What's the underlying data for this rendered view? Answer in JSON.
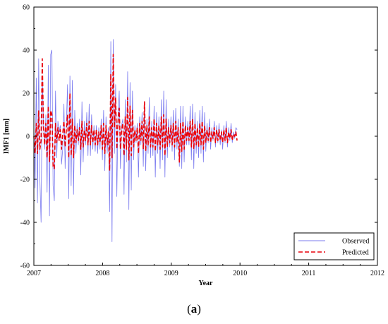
{
  "caption": {
    "open": "(",
    "letter": "a",
    "close": ")"
  },
  "chart_data": {
    "type": "line",
    "title": "",
    "xlabel": "Year",
    "ylabel": "IMF1 [mm]",
    "xlim": [
      2007,
      2012
    ],
    "ylim": [
      -60,
      60
    ],
    "x_ticks": [
      "2007",
      "2008",
      "2009",
      "2010",
      "2011",
      "2012"
    ],
    "y_ticks": [
      "60",
      "40",
      "20",
      "0",
      "-20",
      "-40",
      "-60"
    ],
    "grid": false,
    "legend_position": "bottom-right",
    "colors": {
      "observed": "#7b7bef",
      "predicted": "#e8000b"
    },
    "series": [
      {
        "name": "Observed",
        "style": "solid",
        "x_start": 2007.0,
        "x_step": 0.0175,
        "values": [
          5,
          -24,
          27,
          -31,
          36,
          -20,
          -40,
          28,
          6,
          -6,
          10,
          -26,
          33,
          -37,
          38,
          40,
          -23,
          -30,
          21,
          -10,
          7,
          2,
          5,
          -13,
          -6,
          15,
          -15,
          5,
          24,
          -29,
          28,
          -23,
          26,
          -27,
          12,
          -8,
          6,
          -4,
          8,
          -18,
          16,
          -12,
          7,
          -4,
          11,
          -9,
          15,
          -9,
          10,
          -6,
          5,
          -7,
          5,
          -8,
          4,
          -6,
          8,
          -11,
          12,
          -16,
          9,
          -8,
          4,
          -35,
          44,
          -49,
          45,
          -8,
          24,
          -28,
          10,
          21,
          -15,
          5,
          8,
          -27,
          17,
          -12,
          30,
          -34,
          25,
          -25,
          21,
          -11,
          5,
          -3,
          6,
          -19,
          9,
          -4,
          11,
          -14,
          14,
          -16,
          8,
          -8,
          18,
          -10,
          7,
          -9,
          14,
          -19,
          11,
          -8,
          9,
          -15,
          17,
          -11,
          21,
          -19,
          17,
          -10,
          8,
          -5,
          9,
          -7,
          12,
          -11,
          13,
          -6,
          8,
          -14,
          14,
          -15,
          14,
          -12,
          9,
          -4,
          7,
          -4,
          14,
          -11,
          15,
          -15,
          11,
          -8,
          7,
          -10,
          12,
          -8,
          14,
          -12,
          11,
          -7,
          6,
          -3,
          8,
          -6,
          4,
          -2,
          7,
          -5,
          5,
          -3,
          6,
          -4,
          3,
          -6,
          5,
          -3,
          7,
          -5,
          4,
          -2,
          6,
          -3,
          2,
          -1,
          4,
          3
        ]
      },
      {
        "name": "Predicted",
        "style": "dashed",
        "x_start": 2007.0,
        "x_step": 0.0175,
        "values": [
          0,
          -8,
          6,
          -8,
          12,
          -6,
          -2,
          36,
          4,
          -4,
          6,
          -10,
          14,
          -12,
          12,
          10,
          -14,
          -15,
          6,
          -3,
          4,
          -2,
          3,
          -6,
          1,
          7,
          -5,
          3,
          10,
          -10,
          20,
          -9,
          8,
          -10,
          5,
          -3,
          3,
          -2,
          4,
          -6,
          7,
          -5,
          3,
          -2,
          6,
          -4,
          7,
          -4,
          5,
          -3,
          3,
          -4,
          3,
          -4,
          2,
          -3,
          5,
          -6,
          6,
          -8,
          5,
          -4,
          2,
          -16,
          29,
          -10,
          38,
          4,
          18,
          -6,
          7,
          13,
          -6,
          3,
          6,
          -9,
          9,
          -6,
          18,
          -11,
          14,
          -9,
          12,
          -5,
          3,
          -2,
          4,
          -8,
          6,
          -2,
          7,
          -6,
          16,
          -7,
          5,
          -4,
          9,
          -5,
          4,
          -5,
          8,
          -7,
          6,
          -4,
          5,
          -6,
          9,
          -5,
          10,
          -9,
          8,
          -5,
          4,
          -3,
          5,
          -4,
          6,
          -5,
          7,
          -3,
          4,
          -12,
          6,
          -7,
          7,
          -6,
          5,
          -2,
          4,
          -2,
          7,
          -5,
          8,
          -6,
          6,
          -4,
          4,
          -5,
          6,
          -4,
          7,
          -6,
          5,
          -3,
          3,
          -2,
          4,
          -3,
          2,
          -1,
          4,
          -3,
          3,
          -2,
          3,
          -2,
          2,
          -3,
          3,
          -2,
          4,
          -3,
          2,
          -1,
          3,
          -2,
          1,
          0,
          2,
          -2
        ]
      }
    ]
  }
}
